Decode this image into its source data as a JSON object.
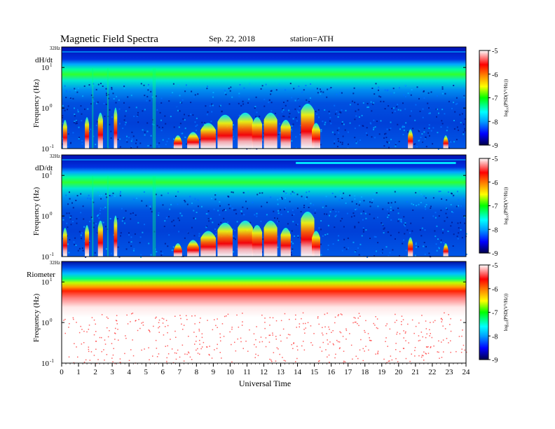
{
  "header": {
    "title": "Magnetic  Field  Spectra",
    "date": "Sep. 22, 2018",
    "station": "station=ATH"
  },
  "chart_data": [
    {
      "type": "heatmap",
      "panel_label": "dH/dt",
      "ylabel": "Frequency  (Hz)",
      "top_tick": "32Hz",
      "y_ticks": [
        {
          "base": "10",
          "exp": "1",
          "value": 10
        },
        {
          "base": "10",
          "exp": "0",
          "value": 1
        },
        {
          "base": "10",
          "exp": "-1",
          "value": 0.1
        }
      ],
      "yscale": "log",
      "ylim": [
        0.1,
        32
      ],
      "xlim": [
        0,
        24
      ],
      "colorbar": {
        "label": "log₁₀(PSD(V²/Hz))",
        "ticks": [
          "-5",
          "-6",
          "-7",
          "-8",
          "-9"
        ],
        "range": [
          -9,
          -5
        ],
        "colors": [
          "#00004a",
          "#0000ff",
          "#00a0ff",
          "#00ffff",
          "#00ff00",
          "#ffff00",
          "#ff8000",
          "#ff0000",
          "#ffffff"
        ]
      }
    },
    {
      "type": "heatmap",
      "panel_label": "dD/dt",
      "ylabel": "Frequency  (Hz)",
      "top_tick": "32Hz",
      "y_ticks": [
        {
          "base": "10",
          "exp": "1",
          "value": 10
        },
        {
          "base": "10",
          "exp": "0",
          "value": 1
        },
        {
          "base": "10",
          "exp": "-1",
          "value": 0.1
        }
      ],
      "yscale": "log",
      "ylim": [
        0.1,
        32
      ],
      "xlim": [
        0,
        24
      ],
      "colorbar": {
        "label": "log₁₀(PSD(V²/Hz))",
        "ticks": [
          "-5",
          "-6",
          "-7",
          "-8",
          "-9"
        ],
        "range": [
          -9,
          -5
        ],
        "colors": [
          "#00004a",
          "#0000ff",
          "#00a0ff",
          "#00ffff",
          "#00ff00",
          "#ffff00",
          "#ff8000",
          "#ff0000",
          "#ffffff"
        ]
      }
    },
    {
      "type": "heatmap",
      "panel_label": "Riometer",
      "ylabel": "Frequency  (Hz)",
      "top_tick": "32Hz",
      "y_ticks": [
        {
          "base": "10",
          "exp": "1",
          "value": 10
        },
        {
          "base": "10",
          "exp": "0",
          "value": 1
        },
        {
          "base": "10",
          "exp": "-1",
          "value": 0.1
        }
      ],
      "yscale": "log",
      "ylim": [
        0.1,
        32
      ],
      "xlim": [
        0,
        24
      ],
      "colorbar": {
        "label": "log₁₀(PSD(V²/Hz))",
        "ticks": [
          "-5",
          "-6",
          "-7",
          "-8",
          "-9"
        ],
        "range": [
          -9,
          -5
        ],
        "colors": [
          "#00004a",
          "#0000ff",
          "#00a0ff",
          "#00ffff",
          "#00ff00",
          "#ffff00",
          "#ff8000",
          "#ff0000",
          "#ffffff"
        ]
      }
    }
  ],
  "x_axis": {
    "label": "Universal Time",
    "ticks": [
      "0",
      "1",
      "2",
      "3",
      "4",
      "5",
      "6",
      "7",
      "8",
      "9",
      "10",
      "11",
      "12",
      "13",
      "14",
      "15",
      "16",
      "17",
      "18",
      "19",
      "20",
      "21",
      "22",
      "23",
      "24"
    ]
  }
}
